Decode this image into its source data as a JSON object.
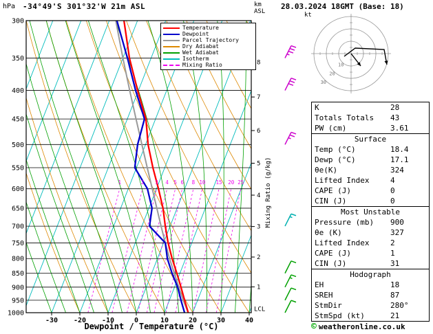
{
  "header": {
    "pressure_unit": "hPa",
    "station": "-34°49'S 301°32'W 21m ASL",
    "km_label": "km",
    "asl_label": "ASL",
    "datetime": "28.03.2024 18GMT (Base: 18)"
  },
  "axes": {
    "xlabel": "Dewpoint / Temperature (°C)",
    "x_ticks": [
      -30,
      -20,
      -10,
      0,
      10,
      20,
      30,
      40
    ],
    "pressure_ticks": [
      300,
      350,
      400,
      450,
      500,
      550,
      600,
      650,
      700,
      750,
      800,
      850,
      900,
      950,
      1000
    ],
    "km_ticks": [
      {
        "km": "8",
        "p": 356
      },
      {
        "km": "7",
        "p": 411
      },
      {
        "km": "6",
        "p": 472
      },
      {
        "km": "5",
        "p": 540
      },
      {
        "km": "4",
        "p": 616
      },
      {
        "km": "3",
        "p": 701
      },
      {
        "km": "2",
        "p": 795
      },
      {
        "km": "1",
        "p": 899
      }
    ],
    "lcl_label": "LCL",
    "lcl_pressure": 985,
    "mixing_axis_label": "Mixing Ratio (g/kg)"
  },
  "legend": {
    "items": [
      {
        "label": "Temperature",
        "color": "#ff0000",
        "dash": false
      },
      {
        "label": "Dewpoint",
        "color": "#0000cc",
        "dash": false
      },
      {
        "label": "Parcel Trajectory",
        "color": "#9a9a9a",
        "dash": false
      },
      {
        "label": "Dry Adiabat",
        "color": "#dd8800",
        "dash": false
      },
      {
        "label": "Wet Adiabat",
        "color": "#00a000",
        "dash": false
      },
      {
        "label": "Isotherm",
        "color": "#00bcbc",
        "dash": false
      },
      {
        "label": "Mixing Ratio",
        "color": "#ee00ee",
        "dash": true
      }
    ]
  },
  "chart_data": {
    "type": "line",
    "title": "Skew-T log-P sounding 28.03.2024 18GMT",
    "x_axis": "Dewpoint / Temperature (°C)",
    "y_axis": "Pressure (hPa), log scale",
    "x_range_C": [
      -35,
      40
    ],
    "pressure_range_hPa": [
      300,
      1000
    ],
    "pressure_hPa": [
      1000,
      950,
      900,
      850,
      800,
      750,
      700,
      650,
      600,
      550,
      500,
      450,
      400,
      350,
      300
    ],
    "temperature_C": [
      18.4,
      15.4,
      12.3,
      8.9,
      5.2,
      1.6,
      -1.7,
      -5.0,
      -9.3,
      -14.2,
      -19.1,
      -23.4,
      -30.3,
      -37.7,
      -44.8
    ],
    "dewpoint_C": [
      17.1,
      14.1,
      11.1,
      7.2,
      3.5,
      0.6,
      -7.3,
      -8.9,
      -13.2,
      -20.6,
      -22.8,
      -23.9,
      -31.0,
      -38.4,
      -47.3
    ],
    "parcel_C": [
      18.4,
      14.9,
      11.5,
      8.0,
      4.3,
      0.6,
      -3.2,
      -7.2,
      -11.5,
      -16.2,
      -21.3,
      -26.9,
      -33.1,
      -40.0,
      -47.7
    ],
    "mixing_ratio_lines_gkg": [
      1,
      2,
      3,
      4,
      5,
      6,
      8,
      10,
      15,
      20,
      25
    ],
    "isotherms_C": {
      "min": -80,
      "max": 40,
      "step": 10
    },
    "dry_adiabats_C": {
      "min": -20,
      "max": 120,
      "step": 10
    },
    "wet_adiabats_C": {
      "min": -30,
      "max": 40,
      "step": 5
    }
  },
  "wind_barbs": [
    {
      "p": 350,
      "speed_kt": 35,
      "color": "#cc00cc"
    },
    {
      "p": 400,
      "speed_kt": 30,
      "color": "#cc00cc"
    },
    {
      "p": 500,
      "speed_kt": 25,
      "color": "#cc00cc"
    },
    {
      "p": 700,
      "speed_kt": 15,
      "color": "#00b0b0"
    },
    {
      "p": 850,
      "speed_kt": 10,
      "color": "#00a000"
    },
    {
      "p": 900,
      "speed_kt": 15,
      "color": "#00a000"
    },
    {
      "p": 950,
      "speed_kt": 10,
      "color": "#00a000"
    },
    {
      "p": 1000,
      "speed_kt": 10,
      "color": "#00a000"
    }
  ],
  "hodograph": {
    "unit_label": "kt",
    "ring_radii_kt": [
      10,
      20,
      30
    ],
    "ring_labels": [
      "10",
      "20",
      "30"
    ],
    "trace": [
      [
        -10,
        4
      ],
      [
        6,
        -8
      ],
      [
        48,
        -6
      ],
      [
        52,
        16
      ]
    ],
    "storm_vector": [
      [
        0,
        0
      ],
      [
        14,
        18
      ]
    ]
  },
  "panel": {
    "sections": [
      {
        "title": "",
        "rows": [
          [
            "K",
            "28"
          ],
          [
            "Totals Totals",
            "43"
          ],
          [
            "PW (cm)",
            "3.61"
          ]
        ]
      },
      {
        "title": "Surface",
        "rows": [
          [
            "Temp (°C)",
            "18.4"
          ],
          [
            "Dewp (°C)",
            "17.1"
          ],
          [
            "θe(K)",
            "324"
          ],
          [
            "Lifted Index",
            "4"
          ],
          [
            "CAPE (J)",
            "0"
          ],
          [
            "CIN (J)",
            "0"
          ]
        ]
      },
      {
        "title": "Most Unstable",
        "rows": [
          [
            "Pressure (mb)",
            "900"
          ],
          [
            "θe (K)",
            "327"
          ],
          [
            "Lifted Index",
            "2"
          ],
          [
            "CAPE (J)",
            "1"
          ],
          [
            "CIN (J)",
            "31"
          ]
        ]
      },
      {
        "title": "Hodograph",
        "rows": [
          [
            "EH",
            "18"
          ],
          [
            "SREH",
            "87"
          ],
          [
            "StmDir",
            "280°"
          ],
          [
            "StmSpd (kt)",
            "21"
          ]
        ]
      }
    ]
  },
  "footer": {
    "icon": "©",
    "text": "weatheronline.co.uk"
  }
}
